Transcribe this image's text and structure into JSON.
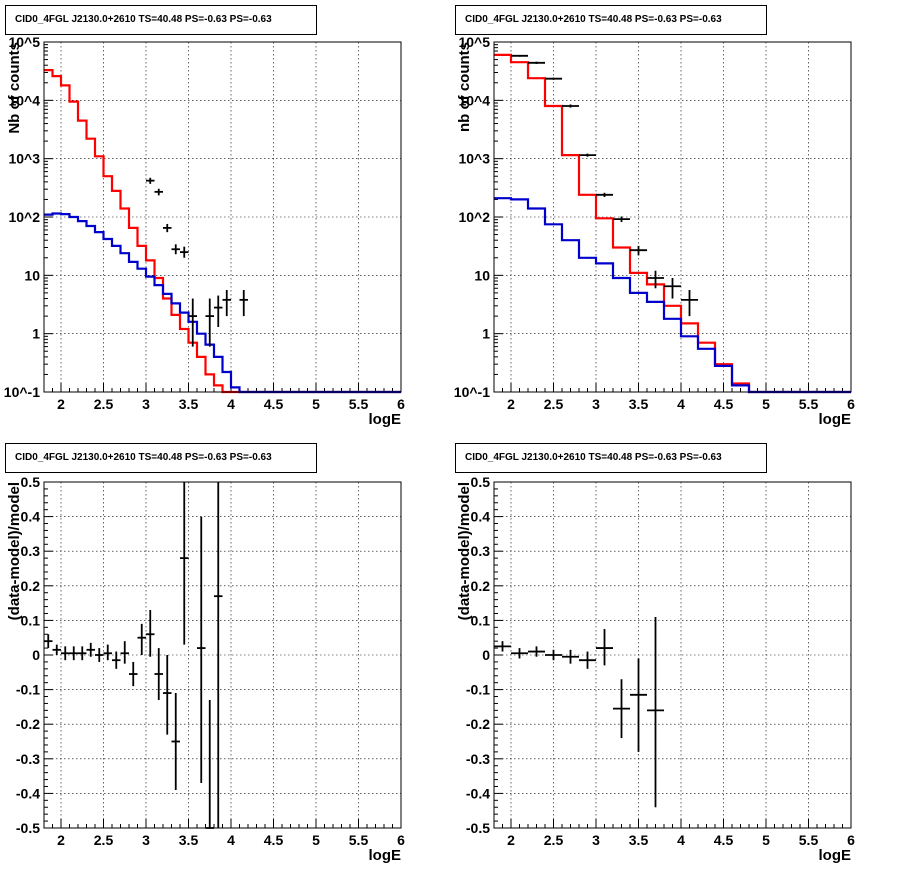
{
  "chart_data": [
    {
      "type": "line",
      "title": "CID0_4FGL J2130.0+2610 TS=40.48 PS=-0.63 PS=-0.63",
      "xlabel": "logE",
      "ylabel": "Nb of counts",
      "xlim": [
        1.8,
        6
      ],
      "ylim": [
        0.1,
        100000
      ],
      "yscale": "log",
      "grid": true,
      "x_ticks": [
        "2",
        "2.5",
        "3",
        "3.5",
        "4",
        "4.5",
        "5",
        "5.5",
        "6"
      ],
      "y_ticks": [
        "10^-1",
        "1",
        "10",
        "10^2",
        "10^3",
        "10^4",
        "10^5"
      ],
      "bin_edges": [
        1.8,
        1.9,
        2.0,
        2.1,
        2.2,
        2.3,
        2.4,
        2.5,
        2.6,
        2.7,
        2.8,
        2.9,
        3.0,
        3.1,
        3.2,
        3.3,
        3.4,
        3.5,
        3.6,
        3.7,
        3.8,
        3.9,
        4.0,
        4.1,
        4.2,
        4.3,
        4.4,
        4.5,
        4.6,
        4.7,
        4.8,
        4.9,
        5.0,
        5.1,
        5.2,
        5.3,
        5.4,
        5.5,
        5.6,
        5.7,
        5.8,
        5.9,
        6.0
      ],
      "series": [
        {
          "color": "#ff0000",
          "values": [
            33000,
            26000,
            18000,
            9500,
            4500,
            2200,
            1100,
            500,
            280,
            140,
            65,
            32,
            18,
            9,
            4,
            2.1,
            1.2,
            0.7,
            0.4,
            0.2,
            0.13,
            0.09,
            0.09,
            0.09,
            0.09,
            0.09,
            0.09,
            0.09,
            0.09,
            0.09,
            0.09,
            0.09,
            0.09,
            0.09,
            0.09,
            0.09,
            0.09,
            0.09,
            0.09,
            0.09,
            0.09,
            0.09
          ]
        },
        {
          "color": "#0000cc",
          "values": [
            110,
            115,
            112,
            100,
            85,
            70,
            55,
            42,
            32,
            24,
            17,
            13,
            9.5,
            6.8,
            4.8,
            3.3,
            2.3,
            1.6,
            1.0,
            0.65,
            0.4,
            0.22,
            0.12,
            0.1,
            0.1,
            0.1,
            0.1,
            0.1,
            0.1,
            0.1,
            0.1,
            0.1,
            0.1,
            0.1,
            0.1,
            0.1,
            0.1,
            0.1,
            0.1,
            0.1,
            0.1,
            0.1
          ]
        }
      ],
      "points": [
        {
          "x": 3.05,
          "y": 420,
          "xerr": 0.05,
          "ylo": 370,
          "yhi": 470
        },
        {
          "x": 3.15,
          "y": 270,
          "xerr": 0.05,
          "ylo": 235,
          "yhi": 305
        },
        {
          "x": 3.25,
          "y": 65,
          "xerr": 0.05,
          "ylo": 55,
          "yhi": 76
        },
        {
          "x": 3.35,
          "y": 28,
          "xerr": 0.05,
          "ylo": 23,
          "yhi": 34
        },
        {
          "x": 3.45,
          "y": 25,
          "xerr": 0.05,
          "ylo": 20,
          "yhi": 31
        },
        {
          "x": 3.55,
          "y": 2,
          "xerr": 0.05,
          "ylo": 0.6,
          "yhi": 4
        },
        {
          "x": 3.75,
          "y": 2,
          "xerr": 0.05,
          "ylo": 0.6,
          "yhi": 4
        },
        {
          "x": 3.85,
          "y": 2.8,
          "xerr": 0.05,
          "ylo": 1.3,
          "yhi": 4.5
        },
        {
          "x": 3.95,
          "y": 3.8,
          "xerr": 0.05,
          "ylo": 2.0,
          "yhi": 5.6
        },
        {
          "x": 4.15,
          "y": 3.8,
          "xerr": 0.05,
          "ylo": 2.0,
          "yhi": 5.6
        }
      ]
    },
    {
      "type": "line",
      "title": "CID0_4FGL J2130.0+2610 TS=40.48 PS=-0.63 PS=-0.63",
      "xlabel": "logE",
      "ylabel": "nb of counts",
      "xlim": [
        1.8,
        6
      ],
      "ylim": [
        0.1,
        100000
      ],
      "yscale": "log",
      "grid": true,
      "x_ticks": [
        "2",
        "2.5",
        "3",
        "3.5",
        "4",
        "4.5",
        "5",
        "5.5",
        "6"
      ],
      "y_ticks": [
        "10^-1",
        "1",
        "10",
        "10^2",
        "10^3",
        "10^4",
        "10^5"
      ],
      "bin_edges": [
        1.8,
        2.0,
        2.2,
        2.4,
        2.6,
        2.8,
        3.0,
        3.2,
        3.4,
        3.6,
        3.8,
        4.0,
        4.2,
        4.4,
        4.6,
        4.8,
        5.0,
        5.2,
        5.4,
        5.6,
        5.8,
        6.0
      ],
      "series": [
        {
          "color": "#ff0000",
          "values": [
            60000,
            45000,
            24000,
            8000,
            1150,
            240,
            95,
            30,
            11,
            7,
            3,
            1.5,
            0.7,
            0.3,
            0.14,
            0.09,
            0.09,
            0.09,
            0.09,
            0.09,
            0.09
          ]
        },
        {
          "color": "#0000cc",
          "values": [
            210,
            200,
            140,
            75,
            40,
            20,
            16,
            9,
            5,
            3.5,
            1.8,
            0.9,
            0.55,
            0.28,
            0.13,
            0.1,
            0.1,
            0.1,
            0.1,
            0.1,
            0.1
          ]
        }
      ],
      "points": [
        {
          "x": 2.1,
          "y": 58000,
          "xerr": 0.1,
          "ylo": 56000,
          "yhi": 60000
        },
        {
          "x": 2.3,
          "y": 44000,
          "xerr": 0.1,
          "ylo": 42000,
          "yhi": 46000
        },
        {
          "x": 2.5,
          "y": 23500,
          "xerr": 0.1,
          "ylo": 22500,
          "yhi": 24500
        },
        {
          "x": 2.7,
          "y": 8000,
          "xerr": 0.1,
          "ylo": 7500,
          "yhi": 8500
        },
        {
          "x": 2.9,
          "y": 1150,
          "xerr": 0.1,
          "ylo": 1080,
          "yhi": 1220
        },
        {
          "x": 3.1,
          "y": 240,
          "xerr": 0.1,
          "ylo": 220,
          "yhi": 260
        },
        {
          "x": 3.3,
          "y": 92,
          "xerr": 0.1,
          "ylo": 82,
          "yhi": 102
        },
        {
          "x": 3.5,
          "y": 27,
          "xerr": 0.1,
          "ylo": 22,
          "yhi": 32
        },
        {
          "x": 3.7,
          "y": 9,
          "xerr": 0.1,
          "ylo": 6,
          "yhi": 12
        },
        {
          "x": 3.9,
          "y": 6.5,
          "xerr": 0.1,
          "ylo": 4,
          "yhi": 9
        },
        {
          "x": 4.1,
          "y": 3.8,
          "xerr": 0.1,
          "ylo": 2,
          "yhi": 5.6
        }
      ]
    },
    {
      "type": "scatter",
      "title": "CID0_4FGL J2130.0+2610 TS=40.48 PS=-0.63 PS=-0.63",
      "xlabel": "logE",
      "ylabel": "(data-model)/model",
      "xlim": [
        1.8,
        6
      ],
      "ylim": [
        -0.5,
        0.5
      ],
      "grid": true,
      "x_ticks": [
        "2",
        "2.5",
        "3",
        "3.5",
        "4",
        "4.5",
        "5",
        "5.5",
        "6"
      ],
      "y_ticks": [
        "-0.5",
        "-0.4",
        "-0.3",
        "-0.2",
        "-0.1",
        "0",
        "0.1",
        "0.2",
        "0.3",
        "0.4",
        "0.5"
      ],
      "points": [
        {
          "x": 1.85,
          "y": 0.04,
          "xerr": 0.05,
          "ylo": 0.02,
          "yhi": 0.06
        },
        {
          "x": 1.95,
          "y": 0.015,
          "xerr": 0.05,
          "ylo": 0.0,
          "yhi": 0.03
        },
        {
          "x": 2.05,
          "y": 0.005,
          "xerr": 0.05,
          "ylo": -0.015,
          "yhi": 0.025
        },
        {
          "x": 2.15,
          "y": 0.005,
          "xerr": 0.05,
          "ylo": -0.015,
          "yhi": 0.025
        },
        {
          "x": 2.25,
          "y": 0.005,
          "xerr": 0.05,
          "ylo": -0.015,
          "yhi": 0.025
        },
        {
          "x": 2.35,
          "y": 0.015,
          "xerr": 0.05,
          "ylo": -0.005,
          "yhi": 0.035
        },
        {
          "x": 2.45,
          "y": 0.0,
          "xerr": 0.05,
          "ylo": -0.02,
          "yhi": 0.02
        },
        {
          "x": 2.55,
          "y": 0.005,
          "xerr": 0.05,
          "ylo": -0.015,
          "yhi": 0.03
        },
        {
          "x": 2.65,
          "y": -0.015,
          "xerr": 0.05,
          "ylo": -0.04,
          "yhi": 0.01
        },
        {
          "x": 2.75,
          "y": 0.005,
          "xerr": 0.05,
          "ylo": -0.025,
          "yhi": 0.04
        },
        {
          "x": 2.85,
          "y": -0.055,
          "xerr": 0.05,
          "ylo": -0.09,
          "yhi": -0.02
        },
        {
          "x": 2.95,
          "y": 0.05,
          "xerr": 0.05,
          "ylo": 0.0,
          "yhi": 0.09
        },
        {
          "x": 3.05,
          "y": 0.06,
          "xerr": 0.05,
          "ylo": -0.005,
          "yhi": 0.13
        },
        {
          "x": 3.15,
          "y": -0.055,
          "xerr": 0.05,
          "ylo": -0.13,
          "yhi": 0.02
        },
        {
          "x": 3.25,
          "y": -0.11,
          "xerr": 0.05,
          "ylo": -0.23,
          "yhi": 0.0
        },
        {
          "x": 3.35,
          "y": -0.25,
          "xerr": 0.05,
          "ylo": -0.39,
          "yhi": -0.11
        },
        {
          "x": 3.45,
          "y": 0.28,
          "xerr": 0.05,
          "ylo": 0.03,
          "yhi": 0.5
        },
        {
          "x": 3.65,
          "y": 0.02,
          "xerr": 0.05,
          "ylo": -0.37,
          "yhi": 0.4
        },
        {
          "x": 3.75,
          "y": -0.5,
          "xerr": 0.05,
          "ylo": -0.5,
          "yhi": -0.13
        },
        {
          "x": 3.85,
          "y": 0.17,
          "xerr": 0.05,
          "ylo": -0.5,
          "yhi": 0.5
        }
      ]
    },
    {
      "type": "scatter",
      "title": "CID0_4FGL J2130.0+2610 TS=40.48 PS=-0.63 PS=-0.63",
      "xlabel": "logE",
      "ylabel": "(data-model)/model",
      "xlim": [
        1.8,
        6
      ],
      "ylim": [
        -0.5,
        0.5
      ],
      "grid": true,
      "x_ticks": [
        "2",
        "2.5",
        "3",
        "3.5",
        "4",
        "4.5",
        "5",
        "5.5",
        "6"
      ],
      "y_ticks": [
        "-0.5",
        "-0.4",
        "-0.3",
        "-0.2",
        "-0.1",
        "0",
        "0.1",
        "0.2",
        "0.3",
        "0.4",
        "0.5"
      ],
      "points": [
        {
          "x": 1.9,
          "y": 0.025,
          "xerr": 0.1,
          "ylo": 0.01,
          "yhi": 0.04
        },
        {
          "x": 2.1,
          "y": 0.005,
          "xerr": 0.1,
          "ylo": -0.01,
          "yhi": 0.02
        },
        {
          "x": 2.3,
          "y": 0.01,
          "xerr": 0.1,
          "ylo": -0.005,
          "yhi": 0.025
        },
        {
          "x": 2.5,
          "y": 0.0,
          "xerr": 0.1,
          "ylo": -0.015,
          "yhi": 0.015
        },
        {
          "x": 2.7,
          "y": -0.005,
          "xerr": 0.1,
          "ylo": -0.025,
          "yhi": 0.015
        },
        {
          "x": 2.9,
          "y": -0.015,
          "xerr": 0.1,
          "ylo": -0.04,
          "yhi": 0.01
        },
        {
          "x": 3.1,
          "y": 0.02,
          "xerr": 0.1,
          "ylo": -0.03,
          "yhi": 0.075
        },
        {
          "x": 3.3,
          "y": -0.155,
          "xerr": 0.1,
          "ylo": -0.24,
          "yhi": -0.07
        },
        {
          "x": 3.5,
          "y": -0.115,
          "xerr": 0.1,
          "ylo": -0.28,
          "yhi": -0.01
        },
        {
          "x": 3.7,
          "y": -0.16,
          "xerr": 0.1,
          "ylo": -0.44,
          "yhi": 0.11
        }
      ]
    }
  ]
}
